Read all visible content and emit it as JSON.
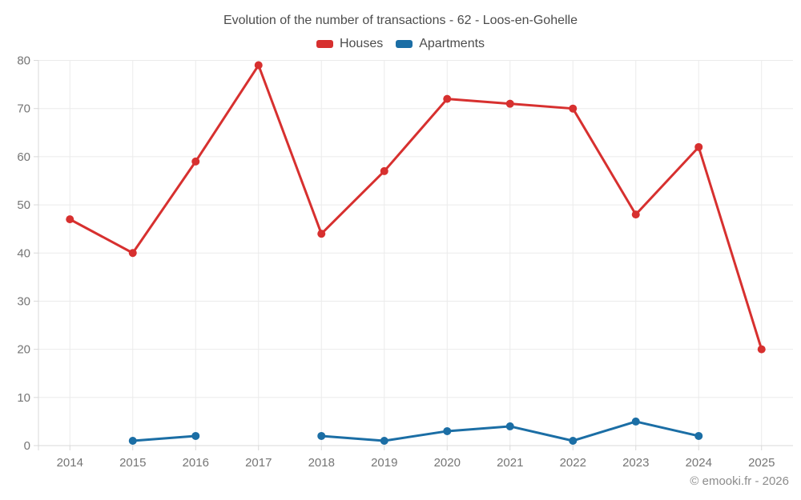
{
  "title": "Evolution of the number of transactions - 62 - Loos-en-Gohelle",
  "footer": "© emooki.fr - 2026",
  "colors": {
    "grid": "#ebebeb",
    "axis": "#d9d9d9",
    "tick_label": "#757575",
    "title_text": "#4c4c4c",
    "footer_text": "#8c8c8c"
  },
  "chart_data": {
    "type": "line",
    "title": "Evolution of the number of transactions - 62 - Loos-en-Gohelle",
    "categories": [
      "2014",
      "2015",
      "2016",
      "2017",
      "2018",
      "2019",
      "2020",
      "2021",
      "2022",
      "2023",
      "2024",
      "2025"
    ],
    "series": [
      {
        "name": "Houses",
        "color": "#d7302f",
        "values": [
          47,
          40,
          59,
          79,
          44,
          57,
          72,
          71,
          70,
          48,
          62,
          20
        ]
      },
      {
        "name": "Apartments",
        "color": "#1b6ea5",
        "values": [
          null,
          1,
          2,
          null,
          2,
          1,
          3,
          4,
          1,
          5,
          2,
          null
        ]
      }
    ],
    "xlabel": "",
    "ylabel": "",
    "ylim": [
      0,
      80
    ],
    "yticks": [
      0,
      10,
      20,
      30,
      40,
      50,
      60,
      70,
      80
    ],
    "grid": true,
    "legend_position": "top"
  }
}
